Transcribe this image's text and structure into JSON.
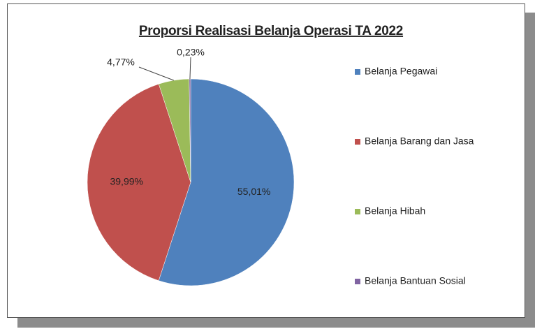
{
  "chart_data": {
    "type": "pie",
    "title": "Proporsi Realisasi Belanja Operasi TA 2022",
    "categories": [
      "Belanja Pegawai",
      "Belanja Barang dan Jasa",
      "Belanja Hibah",
      "Belanja Bantuan Sosial"
    ],
    "values": [
      55.01,
      39.99,
      4.77,
      0.23
    ],
    "value_labels": [
      "55,01%",
      "39,99%",
      "4,77%",
      "0,23%"
    ],
    "colors": [
      "#4f81bd",
      "#c0504d",
      "#9bbb59",
      "#8064a2"
    ],
    "legend": "right"
  }
}
